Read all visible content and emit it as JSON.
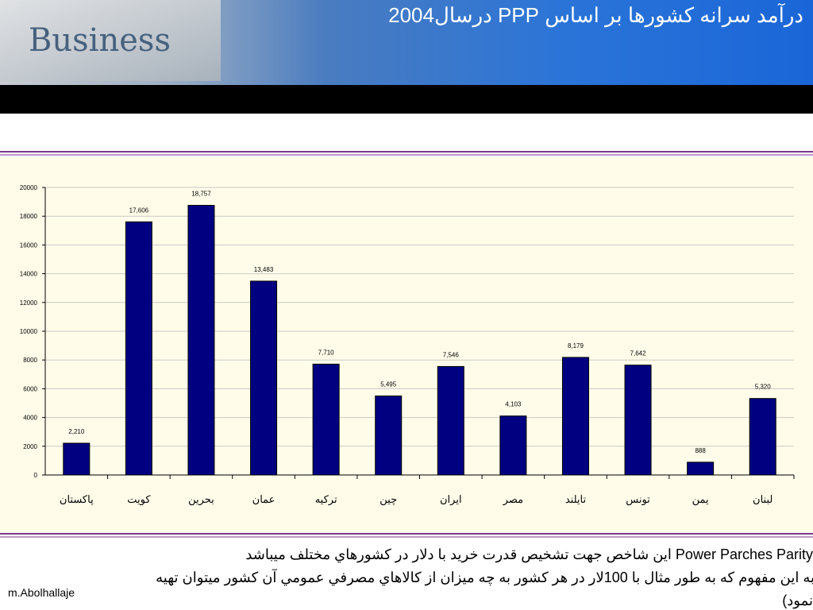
{
  "header": {
    "title": "درآمد سرانه کشورها بر اساس PPP درسال2004"
  },
  "chart_data": {
    "type": "bar",
    "categories": [
      "پاکستان",
      "کویت",
      "بحرین",
      "عمان",
      "ترکیه",
      "چین",
      "ایران",
      "مصر",
      "تایلند",
      "تونس",
      "یمن",
      "لبنان"
    ],
    "values": [
      2210,
      17606,
      18757,
      13483,
      7710,
      5495,
      7546,
      4103,
      8179,
      7642,
      888,
      5320
    ],
    "value_labels": [
      "2,210",
      "17,606",
      "18,757",
      "13,483",
      "7,710",
      "5,495",
      "7,546",
      "4,103",
      "8,179",
      "7,642",
      "888",
      "5,320"
    ],
    "color": "#000080",
    "ylim": [
      0,
      20000
    ],
    "yticks": [
      0,
      2000,
      4000,
      6000,
      8000,
      10000,
      12000,
      14000,
      16000,
      18000,
      20000
    ],
    "grid": true
  },
  "footer": {
    "lines": [
      "Power Parches Parity  اين شاخص جهت تشخيص قدرت خريد با دلار در کشورهاي مختلف ميباشد",
      "به اين مفهوم كه به طور مثال با 100لار در هر كشور به چه ميزان از كالاهاي مصرفي عمومي آن كشور ميتوان تهيه",
      "نمود)"
    ],
    "author": "m.Abolhallaje"
  }
}
